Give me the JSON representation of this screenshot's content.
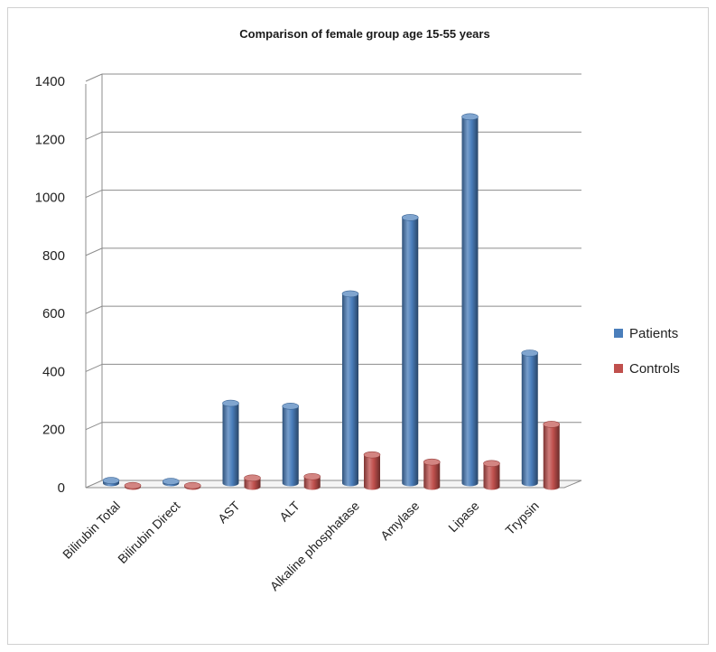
{
  "chart_data": {
    "type": "bar",
    "title": "Comparison of female group age 15-55 years",
    "xlabel": "",
    "ylabel": "",
    "categories": [
      "Bilirubin Total",
      "Bilirubin Direct",
      "AST",
      "ALT",
      "Alkaline phosphatase",
      "Amylase",
      "Lipase",
      "Trypsin"
    ],
    "series": [
      {
        "name": "Patients",
        "color": "#4a7ebb",
        "values": [
          9,
          6,
          275,
          265,
          652,
          915,
          1262,
          448
        ]
      },
      {
        "name": "Controls",
        "color": "#c0504d",
        "values": [
          4,
          4,
          30,
          35,
          110,
          85,
          80,
          215
        ]
      }
    ],
    "ylim": [
      0,
      1400
    ],
    "yticks": [
      0,
      200,
      400,
      600,
      800,
      1000,
      1200,
      1400
    ],
    "grid": true,
    "legend": "right",
    "style": "3d-cylinder"
  }
}
